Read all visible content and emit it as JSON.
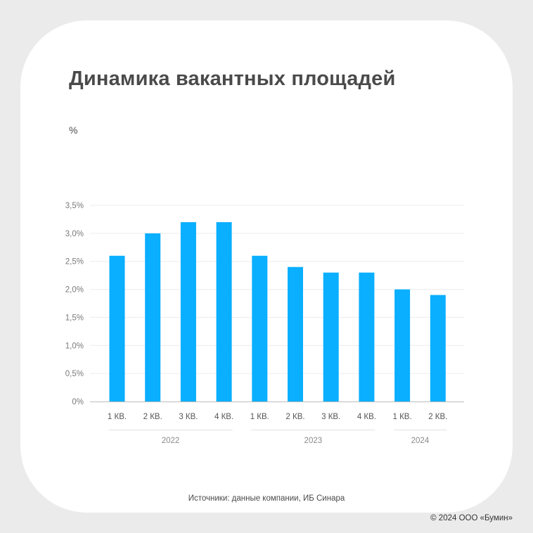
{
  "chart_data": {
    "type": "bar",
    "title": "Динамика вакантных площадей",
    "ylabel": "%",
    "categories": [
      "1 КВ.",
      "2 КВ.",
      "3 КВ.",
      "4 КВ.",
      "1 КВ.",
      "2 КВ.",
      "3 КВ.",
      "4 КВ.",
      "1 КВ.",
      "2 КВ."
    ],
    "groups": [
      {
        "label": "2022",
        "count": 4
      },
      {
        "label": "2023",
        "count": 4
      },
      {
        "label": "2024",
        "count": 2
      }
    ],
    "values": [
      2.6,
      3.0,
      3.2,
      3.2,
      2.6,
      2.4,
      2.3,
      2.3,
      2.0,
      1.9
    ],
    "ylim": [
      0,
      3.5
    ],
    "yticks": [
      0,
      0.5,
      1.0,
      1.5,
      2.0,
      2.5,
      3.0,
      3.5
    ],
    "ytick_labels": [
      "0%",
      "0,5%",
      "1,0%",
      "1,5%",
      "2,0%",
      "2,5%",
      "3,0%",
      "3,5%"
    ],
    "bar_color": "#0aafff",
    "grid": true
  },
  "footer": {
    "source": "Источники: данные компании, ИБ Синара",
    "copyright": "© 2024 ООО «Бумин»"
  }
}
